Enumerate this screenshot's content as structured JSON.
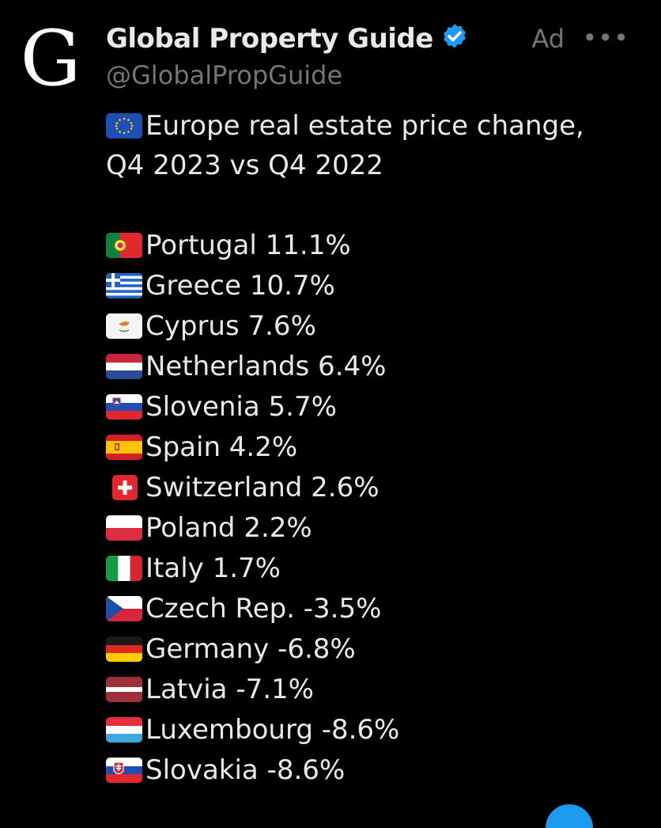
{
  "account": {
    "avatar_letter": "G",
    "display_name": "Global Property Guide",
    "handle": "@GlobalPropGuide",
    "ad_label": "Ad",
    "more_symbol": "•••",
    "verified_icon": "verified-badge-icon",
    "verified_color": "#1d9bf0"
  },
  "tweet": {
    "headline_line1": "Europe real estate price change,",
    "headline_line2": "Q4 2023 vs Q4 2022",
    "headline_flag": "eu-flag-icon",
    "rows": [
      {
        "text": "Portugal 11.1%",
        "flag": "portugal-flag-icon"
      },
      {
        "text": "Greece 10.7%",
        "flag": "greece-flag-icon"
      },
      {
        "text": "Cyprus 7.6%",
        "flag": "cyprus-flag-icon"
      },
      {
        "text": "Netherlands 6.4%",
        "flag": "netherlands-flag-icon"
      },
      {
        "text": "Slovenia 5.7%",
        "flag": "slovenia-flag-icon"
      },
      {
        "text": "Spain 4.2%",
        "flag": "spain-flag-icon"
      },
      {
        "text": "Switzerland 2.6%",
        "flag": "switzerland-flag-icon"
      },
      {
        "text": "Poland 2.2%",
        "flag": "poland-flag-icon"
      },
      {
        "text": "Italy 1.7%",
        "flag": "italy-flag-icon"
      },
      {
        "text": "Czech Rep. -3.5%",
        "flag": "czech-flag-icon"
      },
      {
        "text": "Germany -6.8%",
        "flag": "germany-flag-icon"
      },
      {
        "text": "Latvia -7.1%",
        "flag": "latvia-flag-icon"
      },
      {
        "text": "Luxembourg -8.6%",
        "flag": "luxembourg-flag-icon"
      },
      {
        "text": "Slovakia -8.6%",
        "flag": "slovakia-flag-icon"
      }
    ]
  },
  "colors": {
    "background": "#000000",
    "text": "#e7e9ea",
    "secondary_text": "#71767b",
    "accent": "#1d9bf0"
  }
}
